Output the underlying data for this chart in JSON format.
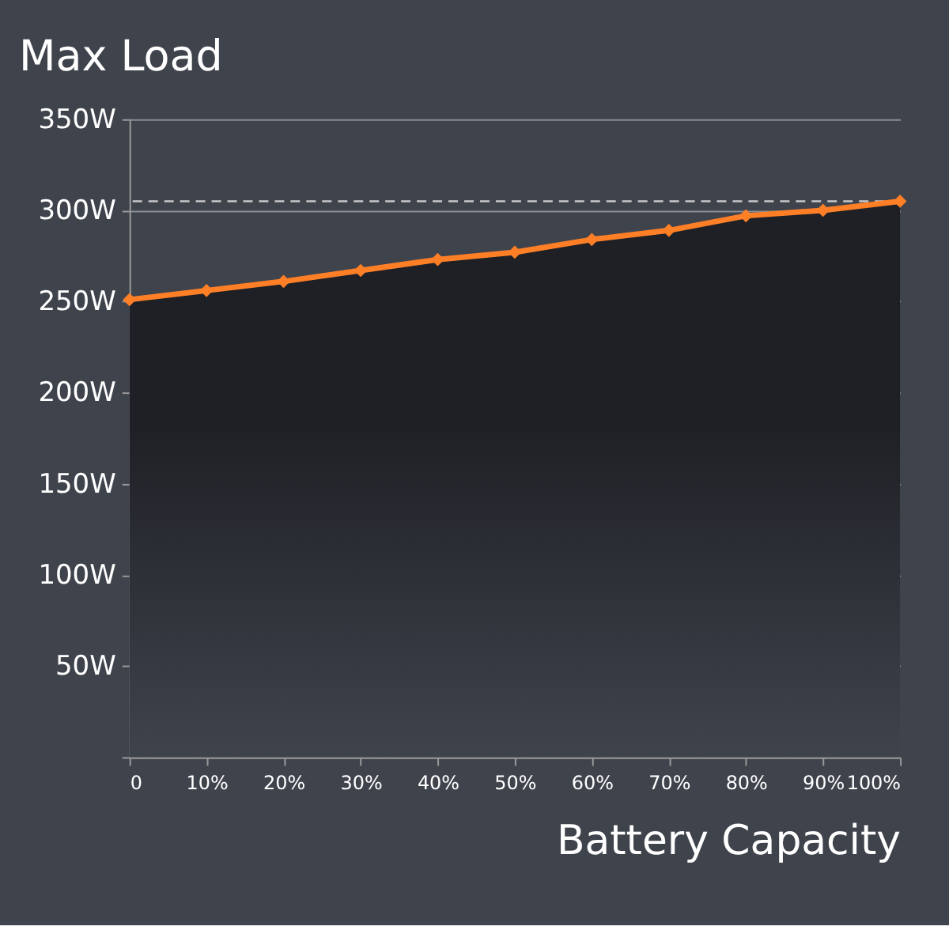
{
  "chart_data": {
    "type": "area",
    "title": "Max Load",
    "xlabel": "Battery Capacity",
    "x": [
      0,
      10,
      20,
      30,
      40,
      50,
      60,
      70,
      80,
      90,
      100
    ],
    "series": [
      {
        "color": "#ff7f27",
        "values": [
          251,
          256,
          261,
          267,
          273,
          277,
          284,
          289,
          297,
          300,
          305
        ]
      }
    ],
    "xlim": [
      0,
      100
    ],
    "xticks": [
      0,
      {
        "value": 10,
        "label": "10%"
      },
      {
        "value": 20,
        "label": "20%"
      },
      {
        "value": 30,
        "label": "30%"
      },
      {
        "value": 40,
        "label": "40%"
      },
      {
        "value": 50,
        "label": "50%"
      },
      {
        "value": 60,
        "label": "60%"
      },
      {
        "value": 70,
        "label": "70%"
      },
      {
        "value": 80,
        "label": "80%"
      },
      {
        "value": 90,
        "label": "90%"
      },
      {
        "value": 100,
        "label": "100%"
      }
    ],
    "ylim": [
      0,
      350
    ],
    "yticks": [
      {
        "value": 0,
        "label": null
      },
      {
        "value": 50,
        "label": "50W"
      },
      {
        "value": 100,
        "label": "100W"
      },
      {
        "value": 150,
        "label": "150W"
      },
      {
        "value": 200,
        "label": "200W"
      },
      {
        "value": 250,
        "label": "250W"
      },
      {
        "value": 300,
        "label": "300W"
      },
      {
        "value": 350,
        "label": "350W"
      }
    ],
    "ref_lines": [
      {
        "axis": "y",
        "value": 305,
        "color": "#c8c8c8",
        "line_style": "dashed"
      }
    ],
    "grid": "y",
    "marker": "diamond",
    "line_style": "solid"
  }
}
